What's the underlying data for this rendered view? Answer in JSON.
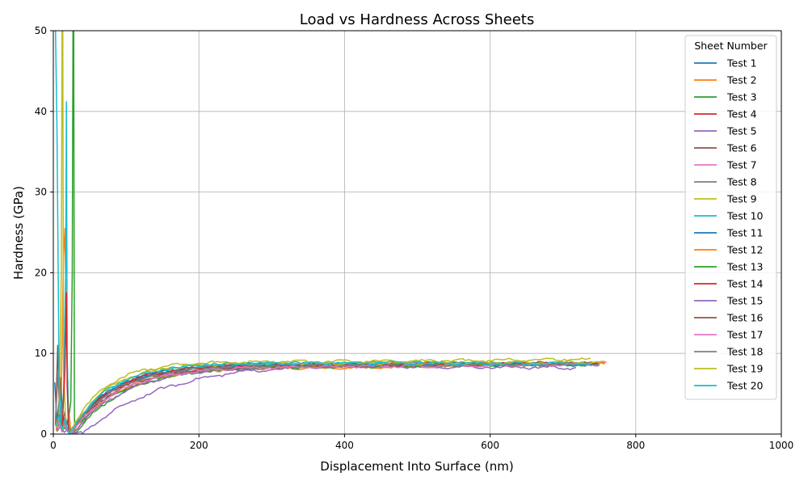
{
  "chart_data": {
    "type": "line",
    "title": "Load vs Hardness Across Sheets",
    "xlabel": "Displacement Into Surface (nm)",
    "ylabel": "Hardness (GPa)",
    "xlim": [
      0,
      1000
    ],
    "ylim": [
      0,
      50
    ],
    "xticks": [
      "0",
      "200",
      "400",
      "600",
      "800",
      "1000"
    ],
    "yticks": [
      "0",
      "10",
      "20",
      "30",
      "40",
      "50"
    ],
    "grid": true,
    "legend": {
      "title": "Sheet Number",
      "placement": "top-right"
    },
    "series": [
      {
        "name": "Test 1",
        "color": "#1f77b4",
        "spike": [
          [
            2,
            6.4
          ],
          [
            5,
            1.5
          ],
          [
            8,
            4.2
          ],
          [
            11,
            0.9
          ],
          [
            14,
            2.1
          ],
          [
            17,
            0.6
          ],
          [
            20,
            1.8
          ]
        ],
        "x0": 22,
        "base": 8.6,
        "range": 57,
        "end": 740,
        "end_y": 8.6
      },
      {
        "name": "Test 2",
        "color": "#ff7f0e",
        "spike": [
          [
            4,
            0.4
          ],
          [
            8,
            1.2
          ],
          [
            11,
            6.0
          ],
          [
            14,
            22.0
          ],
          [
            16,
            25.5
          ],
          [
            18,
            12.0
          ],
          [
            21,
            3.0
          ],
          [
            24,
            0.4
          ]
        ],
        "x0": 26,
        "base": 8.4,
        "range": 64,
        "end": 760,
        "end_y": 8.8
      },
      {
        "name": "Test 3",
        "color": "#2ca02c",
        "spike": [
          [
            3,
            1.2
          ],
          [
            8,
            2.4
          ],
          [
            14,
            0.6
          ],
          [
            20,
            1.2
          ],
          [
            24,
            4.0
          ],
          [
            26,
            20.0
          ],
          [
            27,
            50.0
          ],
          [
            28,
            50.0
          ],
          [
            29,
            2.0
          ]
        ],
        "x0": 30,
        "base": 8.5,
        "range": 70,
        "end": 750,
        "end_y": 8.7
      },
      {
        "name": "Test 4",
        "color": "#d62728",
        "spike": [
          [
            4,
            0.8
          ],
          [
            8,
            2.2
          ],
          [
            12,
            0.5
          ],
          [
            16,
            1.6
          ],
          [
            20,
            0.4
          ]
        ],
        "x0": 22,
        "base": 8.7,
        "range": 60,
        "end": 750,
        "end_y": 8.8
      },
      {
        "name": "Test 5",
        "color": "#9467bd",
        "spike": [
          [
            5,
            0.3
          ],
          [
            10,
            1.0
          ],
          [
            15,
            0.2
          ],
          [
            20,
            0.6
          ],
          [
            30,
            0.1
          ],
          [
            38,
            0.3
          ]
        ],
        "x0": 40,
        "base": 8.9,
        "range": 110,
        "end": 720,
        "end_y": 8.6
      },
      {
        "name": "Test 6",
        "color": "#8c564b",
        "spike": [
          [
            3,
            1.0
          ],
          [
            6,
            11.0
          ],
          [
            8,
            4.0
          ],
          [
            10,
            7.0
          ],
          [
            13,
            1.5
          ],
          [
            16,
            2.8
          ],
          [
            19,
            0.6
          ]
        ],
        "x0": 22,
        "base": 8.6,
        "range": 62,
        "end": 750,
        "end_y": 8.8
      },
      {
        "name": "Test 7",
        "color": "#e377c2",
        "spike": [
          [
            4,
            0.6
          ],
          [
            8,
            1.5
          ],
          [
            12,
            0.3
          ],
          [
            16,
            1.2
          ],
          [
            20,
            0.5
          ]
        ],
        "x0": 24,
        "base": 8.5,
        "range": 63,
        "end": 760,
        "end_y": 8.8
      },
      {
        "name": "Test 8",
        "color": "#7f7f7f",
        "spike": [
          [
            3,
            2.0
          ],
          [
            7,
            8.0
          ],
          [
            10,
            3.5
          ],
          [
            13,
            1.0
          ],
          [
            16,
            2.0
          ],
          [
            19,
            0.5
          ]
        ],
        "x0": 22,
        "base": 8.6,
        "range": 61,
        "end": 750,
        "end_y": 8.7
      },
      {
        "name": "Test 9",
        "color": "#bcbd22",
        "spike": [
          [
            3,
            1.0
          ],
          [
            8,
            2.5
          ],
          [
            11,
            20.0
          ],
          [
            12,
            50.0
          ],
          [
            13,
            50.0
          ],
          [
            14,
            8.0
          ],
          [
            17,
            1.5
          ],
          [
            20,
            0.6
          ]
        ],
        "x0": 22,
        "base": 9.0,
        "range": 48,
        "end": 740,
        "end_y": 9.3
      },
      {
        "name": "Test 10",
        "color": "#17becf",
        "spike": [
          [
            2,
            50.0
          ],
          [
            3,
            50.0
          ],
          [
            5,
            38.0
          ],
          [
            8,
            6.0
          ],
          [
            11,
            1.0
          ],
          [
            14,
            5.0
          ],
          [
            17,
            20.0
          ],
          [
            18,
            41.2
          ],
          [
            19,
            10.0
          ],
          [
            21,
            1.2
          ]
        ],
        "x0": 24,
        "base": 8.8,
        "range": 55,
        "end": 740,
        "end_y": 8.7
      },
      {
        "name": "Test 11",
        "color": "#1f77b4",
        "spike": [
          [
            4,
            0.8
          ],
          [
            8,
            1.8
          ],
          [
            12,
            0.5
          ],
          [
            16,
            1.4
          ],
          [
            20,
            0.4
          ]
        ],
        "x0": 22,
        "base": 8.6,
        "range": 58,
        "end": 750,
        "end_y": 8.7
      },
      {
        "name": "Test 12",
        "color": "#ff7f0e",
        "spike": [
          [
            4,
            0.5
          ],
          [
            8,
            1.4
          ],
          [
            12,
            0.4
          ],
          [
            16,
            1.0
          ],
          [
            20,
            0.3
          ]
        ],
        "x0": 25,
        "base": 8.3,
        "range": 66,
        "end": 760,
        "end_y": 8.8
      },
      {
        "name": "Test 13",
        "color": "#2ca02c",
        "spike": [
          [
            4,
            0.9
          ],
          [
            8,
            2.0
          ],
          [
            12,
            0.5
          ],
          [
            16,
            1.5
          ],
          [
            20,
            0.4
          ]
        ],
        "x0": 24,
        "base": 8.4,
        "range": 68,
        "end": 750,
        "end_y": 8.7
      },
      {
        "name": "Test 14",
        "color": "#d62728",
        "spike": [
          [
            4,
            1.0
          ],
          [
            8,
            2.4
          ],
          [
            12,
            0.6
          ],
          [
            16,
            8.0
          ],
          [
            18,
            17.5
          ],
          [
            19,
            6.0
          ],
          [
            21,
            0.5
          ]
        ],
        "x0": 23,
        "base": 8.7,
        "range": 59,
        "end": 750,
        "end_y": 8.8
      },
      {
        "name": "Test 15",
        "color": "#9467bd",
        "spike": [
          [
            4,
            0.5
          ],
          [
            8,
            1.3
          ],
          [
            12,
            0.3
          ],
          [
            16,
            1.0
          ],
          [
            20,
            0.3
          ]
        ],
        "x0": 26,
        "base": 8.4,
        "range": 72,
        "end": 720,
        "end_y": 8.2
      },
      {
        "name": "Test 16",
        "color": "#8c564b",
        "spike": [
          [
            4,
            0.7
          ],
          [
            8,
            1.6
          ],
          [
            12,
            0.4
          ],
          [
            16,
            1.2
          ],
          [
            20,
            0.4
          ]
        ],
        "x0": 23,
        "base": 8.5,
        "range": 64,
        "end": 750,
        "end_y": 8.7
      },
      {
        "name": "Test 17",
        "color": "#e377c2",
        "spike": [
          [
            4,
            0.6
          ],
          [
            8,
            1.5
          ],
          [
            12,
            0.4
          ],
          [
            16,
            1.1
          ],
          [
            20,
            0.3
          ]
        ],
        "x0": 24,
        "base": 8.4,
        "range": 66,
        "end": 750,
        "end_y": 8.6
      },
      {
        "name": "Test 18",
        "color": "#7f7f7f",
        "spike": [
          [
            4,
            0.9
          ],
          [
            8,
            2.0
          ],
          [
            12,
            0.5
          ],
          [
            16,
            1.6
          ],
          [
            20,
            0.4
          ]
        ],
        "x0": 22,
        "base": 8.6,
        "range": 61,
        "end": 750,
        "end_y": 8.7
      },
      {
        "name": "Test 19",
        "color": "#bcbd22",
        "spike": [
          [
            4,
            0.8
          ],
          [
            8,
            2.1
          ],
          [
            12,
            0.5
          ],
          [
            16,
            1.6
          ],
          [
            20,
            0.5
          ]
        ],
        "x0": 22,
        "base": 8.8,
        "range": 52,
        "end": 760,
        "end_y": 8.9
      },
      {
        "name": "Test 20",
        "color": "#17becf",
        "spike": [
          [
            4,
            1.0
          ],
          [
            8,
            2.3
          ],
          [
            12,
            0.6
          ],
          [
            16,
            1.7
          ],
          [
            20,
            0.5
          ]
        ],
        "x0": 22,
        "base": 8.8,
        "range": 54,
        "end": 740,
        "end_y": 8.7
      }
    ]
  }
}
